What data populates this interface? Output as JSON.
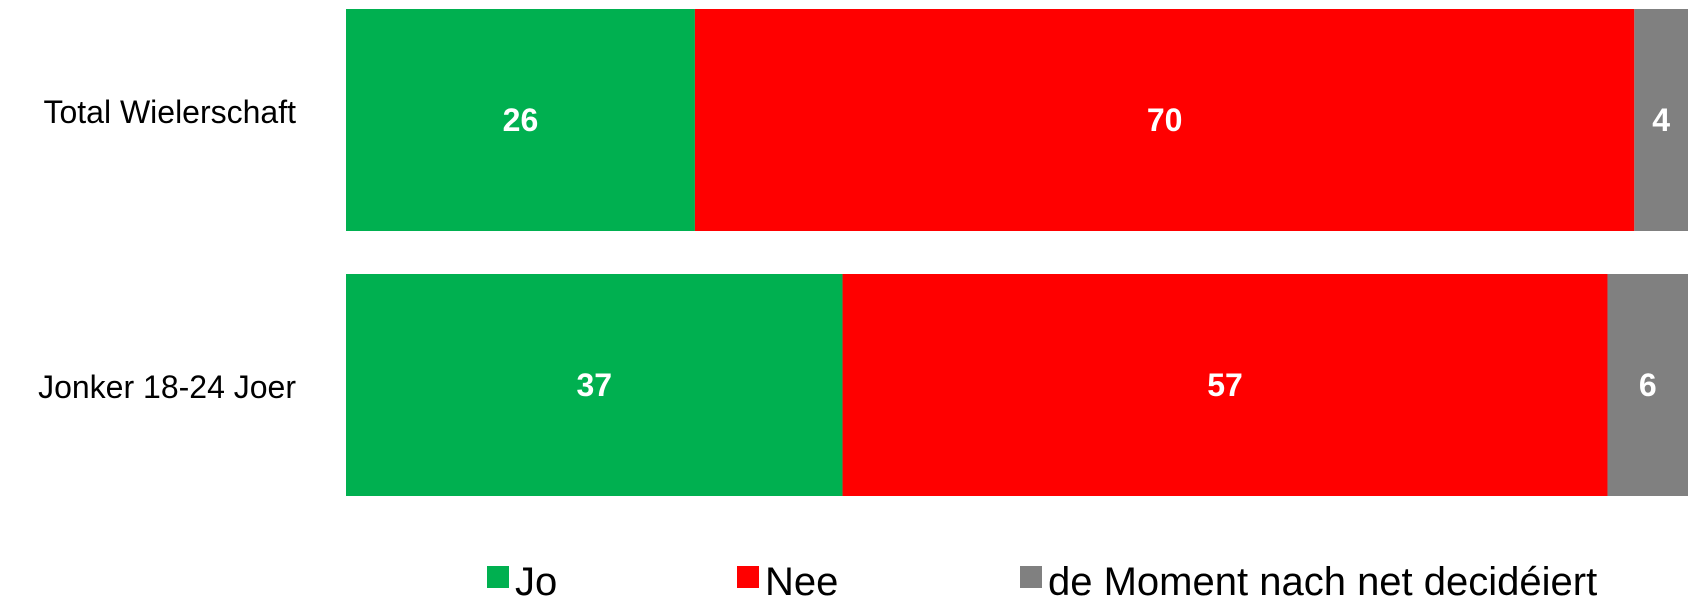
{
  "chart_data": {
    "type": "bar",
    "orientation": "horizontal",
    "stacked": true,
    "categories": [
      "Total Wielerschaft",
      "Jonker 18-24 Joer"
    ],
    "series": [
      {
        "name": "Jo",
        "values": [
          26,
          37
        ],
        "color": "#00b050"
      },
      {
        "name": "Nee",
        "values": [
          70,
          57
        ],
        "color": "#ff0000"
      },
      {
        "name": "de Moment nach net decidéiert",
        "values": [
          4,
          6
        ],
        "color": "#808080"
      }
    ],
    "xlim": [
      0,
      100
    ],
    "grid": false,
    "legend_position": "bottom"
  }
}
